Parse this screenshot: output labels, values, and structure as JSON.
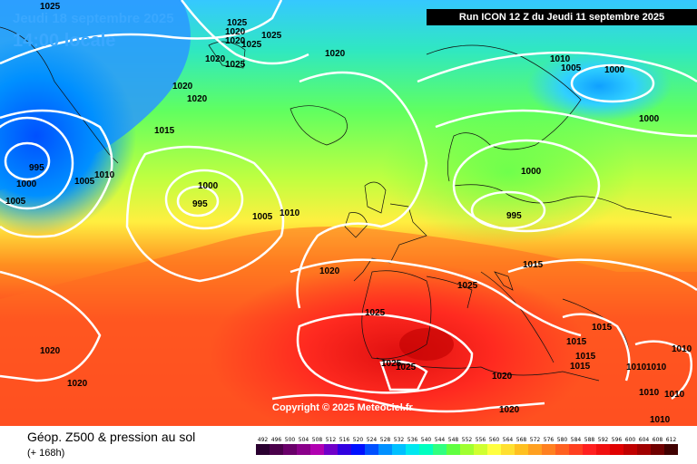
{
  "header": {
    "date_line": "Jeudi 18 septembre 2025",
    "time_line": "14:00 locale",
    "run_banner": "Run ICON 12 Z du Jeudi 11 septembre 2025"
  },
  "footer": {
    "title": "Géop. Z500 & pression au sol",
    "subtitle": "(+ 168h)",
    "copyright": "Copyright © 2025 Meteociel.fr"
  },
  "legend": {
    "ticks": [
      "492",
      "496",
      "500",
      "504",
      "508",
      "512",
      "516",
      "520",
      "524",
      "528",
      "532",
      "536",
      "540",
      "544",
      "548",
      "552",
      "556",
      "560",
      "564",
      "568",
      "572",
      "576",
      "580",
      "584",
      "588",
      "592",
      "596",
      "600",
      "604",
      "608",
      "612"
    ],
    "colors": [
      "#2a0030",
      "#4a004a",
      "#6a006a",
      "#8a008a",
      "#b000b0",
      "#7000c8",
      "#3000e0",
      "#0010ff",
      "#0050ff",
      "#0090ff",
      "#00c0ff",
      "#00e8f0",
      "#00ffc0",
      "#30ff80",
      "#60ff40",
      "#a0ff30",
      "#d0ff30",
      "#ffff40",
      "#ffe030",
      "#ffc020",
      "#ffa020",
      "#ff8020",
      "#ff6020",
      "#ff4020",
      "#ff2020",
      "#f01010",
      "#e00000",
      "#c00000",
      "#a00000",
      "#700000",
      "#400000"
    ]
  },
  "isobar_labels": [
    "1025",
    "1025",
    "1020",
    "1020",
    "1025",
    "1025",
    "1020",
    "1025",
    "1020",
    "1020",
    "1020",
    "1015",
    "995",
    "1000",
    "1005",
    "1005",
    "1010",
    "1000",
    "995",
    "1005",
    "1010",
    "1010",
    "1005",
    "1000",
    "1000",
    "1000",
    "995",
    "1015",
    "1020",
    "1025",
    "1025",
    "1025",
    "1025",
    "1020",
    "1020",
    "1020",
    "1020",
    "1015",
    "1015",
    "1015",
    "1015",
    "1010",
    "1010",
    "1010",
    "1010",
    "1010",
    "1010"
  ]
}
